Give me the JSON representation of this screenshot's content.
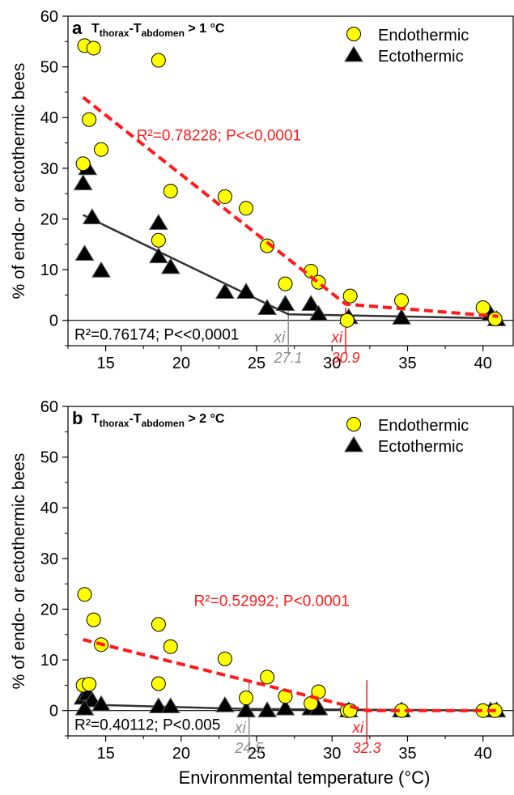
{
  "axes": {
    "ylabel": "% of endo- or ectothermic bees",
    "xlabel": "Environmental temperature (°C)",
    "xticks": [
      15,
      20,
      25,
      30,
      35,
      40
    ],
    "yticks": [
      0,
      10,
      20,
      30,
      40,
      50,
      60
    ]
  },
  "legend": {
    "endo": "Endothermic",
    "ecto": "Ectothermic"
  },
  "colors": {
    "endo_fill": "#ffff00",
    "ecto_fill": "#000000",
    "endo_fit": "#ff1a1a",
    "ecto_fit": "#333333",
    "ecto_xi": "#8c8c8c",
    "endo_xi": "#ff1a1a"
  },
  "chart_data": [
    {
      "type": "scatter",
      "panel_letter": "a",
      "title_parts": {
        "t1": "T",
        "s1": "thorax",
        "dash": "-T",
        "s2": "abdomen",
        "tail": " > 1 °C"
      },
      "xlim": [
        12.5,
        42
      ],
      "ylim": [
        -5,
        60
      ],
      "grid": false,
      "legend_position": "top-right",
      "series": [
        {
          "name": "Endothermic",
          "points": [
            [
              13.6,
              54.2
            ],
            [
              14.2,
              53.7
            ],
            [
              18.5,
              51.3
            ],
            [
              13.9,
              39.6
            ],
            [
              14.7,
              33.7
            ],
            [
              13.5,
              30.9
            ],
            [
              19.3,
              25.5
            ],
            [
              22.9,
              24.4
            ],
            [
              24.3,
              22.1
            ],
            [
              18.5,
              15.8
            ],
            [
              25.7,
              14.7
            ],
            [
              28.6,
              9.7
            ],
            [
              26.9,
              7.2
            ],
            [
              29.1,
              7.5
            ],
            [
              31.2,
              4.8
            ],
            [
              34.6,
              3.9
            ],
            [
              40.0,
              2.5
            ],
            [
              40.8,
              0.3
            ],
            [
              31.0,
              0.0
            ]
          ]
        },
        {
          "name": "Ectothermic",
          "points": [
            [
              13.5,
              27.0
            ],
            [
              13.8,
              30.0
            ],
            [
              14.1,
              20.3
            ],
            [
              13.6,
              13.1
            ],
            [
              14.7,
              9.8
            ],
            [
              18.5,
              19.2
            ],
            [
              18.5,
              12.6
            ],
            [
              19.3,
              10.5
            ],
            [
              22.9,
              5.6
            ],
            [
              24.3,
              5.6
            ],
            [
              25.7,
              2.4
            ],
            [
              26.9,
              3.2
            ],
            [
              28.6,
              3.2
            ],
            [
              29.1,
              1.2
            ],
            [
              31.1,
              0.6
            ],
            [
              34.6,
              0.5
            ],
            [
              40.5,
              1.2
            ],
            [
              40.9,
              0.2
            ]
          ]
        }
      ],
      "fits": {
        "endo": {
          "points": [
            [
              13.5,
              44.0
            ],
            [
              30.9,
              3.2
            ],
            [
              41.0,
              0.8
            ]
          ],
          "label": "R²=0.78228; P<<0,0001"
        },
        "ecto": {
          "points": [
            [
              13.5,
              20.8
            ],
            [
              27.1,
              1.2
            ],
            [
              41.0,
              0.4
            ]
          ],
          "label": "R²=0.76174; P<<0,0001"
        }
      },
      "breakpoints": [
        {
          "series": "ecto",
          "x": 27.1,
          "symbol": "xi",
          "value_label": "27.1"
        },
        {
          "series": "endo",
          "x": 30.9,
          "symbol": "xi",
          "value_label": "30.9"
        }
      ]
    },
    {
      "type": "scatter",
      "panel_letter": "b",
      "title_parts": {
        "t1": "T",
        "s1": "thorax",
        "dash": "-T",
        "s2": "abdomen",
        "tail": " > 2 °C"
      },
      "xlim": [
        12.5,
        42
      ],
      "ylim": [
        -5,
        60
      ],
      "grid": false,
      "legend_position": "top-right",
      "series": [
        {
          "name": "Endothermic",
          "points": [
            [
              13.6,
              22.9
            ],
            [
              14.2,
              17.9
            ],
            [
              18.5,
              17.0
            ],
            [
              14.7,
              13.0
            ],
            [
              19.3,
              12.6
            ],
            [
              22.9,
              10.2
            ],
            [
              18.5,
              5.3
            ],
            [
              13.5,
              5.0
            ],
            [
              13.9,
              5.2
            ],
            [
              25.7,
              6.6
            ],
            [
              24.3,
              2.5
            ],
            [
              26.9,
              2.8
            ],
            [
              29.1,
              3.7
            ],
            [
              28.6,
              1.4
            ],
            [
              31.0,
              0.0
            ],
            [
              31.2,
              0.0
            ],
            [
              34.6,
              0.0
            ],
            [
              40.0,
              0.0
            ],
            [
              40.8,
              0.0
            ]
          ]
        },
        {
          "name": "Ectothermic",
          "points": [
            [
              13.5,
              2.5
            ],
            [
              13.8,
              3.3
            ],
            [
              14.1,
              2.0
            ],
            [
              13.6,
              0.4
            ],
            [
              14.7,
              1.2
            ],
            [
              18.5,
              0.8
            ],
            [
              19.3,
              0.8
            ],
            [
              22.9,
              1.0
            ],
            [
              24.3,
              0.0
            ],
            [
              25.7,
              0.0
            ],
            [
              26.9,
              0.4
            ],
            [
              28.6,
              0.4
            ],
            [
              29.1,
              0.4
            ],
            [
              31.1,
              0.0
            ],
            [
              34.6,
              0.0
            ],
            [
              40.5,
              0.0
            ],
            [
              40.9,
              0.0
            ]
          ]
        }
      ],
      "fits": {
        "endo": {
          "points": [
            [
              13.5,
              14.0
            ],
            [
              32.3,
              0.0
            ],
            [
              41.0,
              0.0
            ]
          ],
          "label": "R²=0.52992; P<0.0001"
        },
        "ecto": {
          "points": [
            [
              13.5,
              1.2
            ],
            [
              24.5,
              0.3
            ],
            [
              41.0,
              0.0
            ]
          ],
          "label": "R²=0.40112; P<0.005"
        }
      },
      "breakpoints": [
        {
          "series": "ecto",
          "x": 24.5,
          "symbol": "xi",
          "value_label": "24.5"
        },
        {
          "series": "endo",
          "x": 32.3,
          "symbol": "xi",
          "value_label": "32.3"
        }
      ]
    }
  ]
}
